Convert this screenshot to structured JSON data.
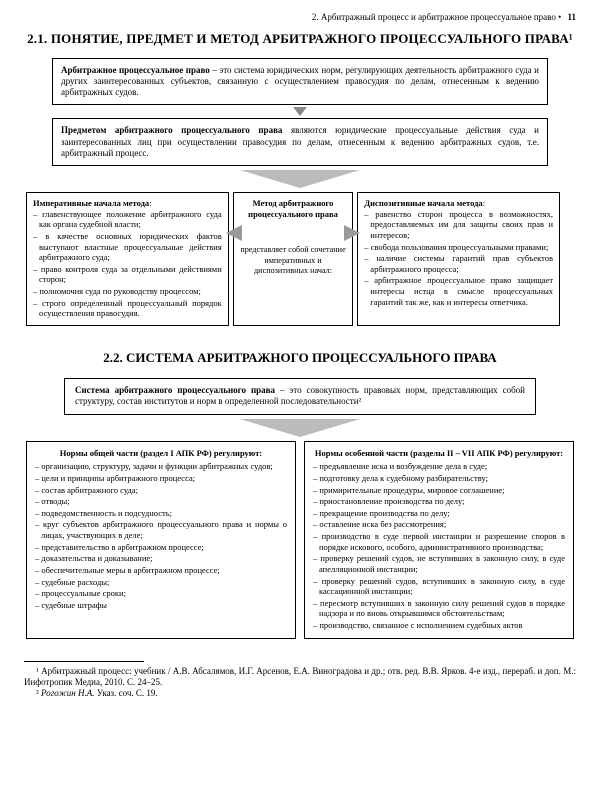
{
  "header": {
    "chapter": "2. Арбитражный процесс и арбитражное процессуальное право",
    "bullet": "•",
    "page": "11"
  },
  "s21": {
    "title": "2.1. ПОНЯТИЕ, ПРЕДМЕТ И МЕТОД АРБИТРАЖНОГО ПРОЦЕССУАЛЬНОГО ПРАВА¹",
    "def_bold": "Арбитражное процессуальное право",
    "def_rest": " – это система юридических норм, регулирующих деятельность арбитражного суда и других заинтересованных субъектов, связанную с осуществлением правосудия по делам, отнесенным к ведению арбитражных судов.",
    "pred_bold": "Предметом арбитражного процессуального права",
    "pred_rest": " являются юридические процессуальные действия суда и заинтересованных лиц при осуществлении правосудия по делам, отнесенным к ведению арбитражных судов, т.е. арбитражный процесс.",
    "left_title": "Императивные начала метода",
    "left_items": [
      "– главенствующее положение арбитражного суда как органа судебной власти;",
      "– в качестве основных юридических фактов выступают властные процессуальные действия арбитражного суда;",
      "– право контроля суда за отдельными действиями сторон;",
      "– полномочия суда по руководству процессом;",
      "– строго определенный процессуальный порядок осуществления правосудия."
    ],
    "mid_title": "Метод арбитражного процессуального права",
    "mid_text": "представляет собой сочетание императивных и диспозитивных начал:",
    "right_title": "Диспозитивные начала метода",
    "right_items": [
      "– равенство сторон процесса в возможностях, предоставляемых им для защиты своих прав и интересов;",
      "– свобода пользования процессуальными правами;",
      "– наличие системы гарантий прав субъектов арбитражного процесса;",
      "– арбитражное процессуальное право защищает интересы истца в смысле процессуальных гарантий так же, как и интересы ответчика."
    ]
  },
  "s22": {
    "title": "2.2. СИСТЕМА АРБИТРАЖНОГО ПРОЦЕССУАЛЬНОГО ПРАВА",
    "def_bold": "Система арбитражного процессуального права",
    "def_rest": " – это совокупность правовых норм, представляющих собой структуру, состав институтов и норм в определенной последовательности²",
    "left_title": "Нормы общей части (раздел I АПК РФ) регулируют:",
    "left_items": [
      "– организацию, структуру, задачи и функции арбитражных судов;",
      "– цели и принципы арбитражного процесса;",
      "– состав арбитражного суда;",
      "– отводы;",
      "– подведомственность и подсудность;",
      "– круг субъектов арбитражного процессуального права и нормы о лицах, участвующих в деле;",
      "– представительство в арбитражном процессе;",
      "– доказательства и доказывание;",
      "– обеспечительные меры в арбитражном процессе;",
      "– судебные расходы;",
      "– процессуальные сроки;",
      "– судебные штрафы"
    ],
    "right_title": "Нормы особенной части (разделы II – VII АПК РФ) регулируют:",
    "right_items": [
      "– предъявление иска и возбуждение дела в суде;",
      "– подготовку дела к судебному разбирательству;",
      "– примирительные процедуры, мировое соглашение;",
      "– приостановление производства по делу;",
      "– прекращение производства по делу;",
      "– оставление иска без рассмотрения;",
      "– производство в суде первой инстанции и разрешение споров в порядке искового, особого, административного производства;",
      "– проверку решений судов, не вступивших в законную силу, в суде апелляционной инстанции;",
      "– проверку решений судов, вступивших в законную силу, в суде кассационной инстанции;",
      "– пересмотр вступивших в законную силу решений судов в порядке надзора и по вновь открывшимся обстоятельствам;",
      "– производство, связанное с исполнением судебных актов"
    ]
  },
  "footnotes": {
    "f1": "¹ Арбитражный процесс: учебник / А.В. Абсалямов, И.Г. Арсенов, Е.А. Виноградова и др.; отв. ред. В.В. Ярков. 4-е изд., перераб. и доп. М.: Инфотропик Медиа, 2010. С. 24–25.",
    "f2_auth": "Рогожин Н.А.",
    "f2_rest": " Указ. соч. С. 19."
  }
}
